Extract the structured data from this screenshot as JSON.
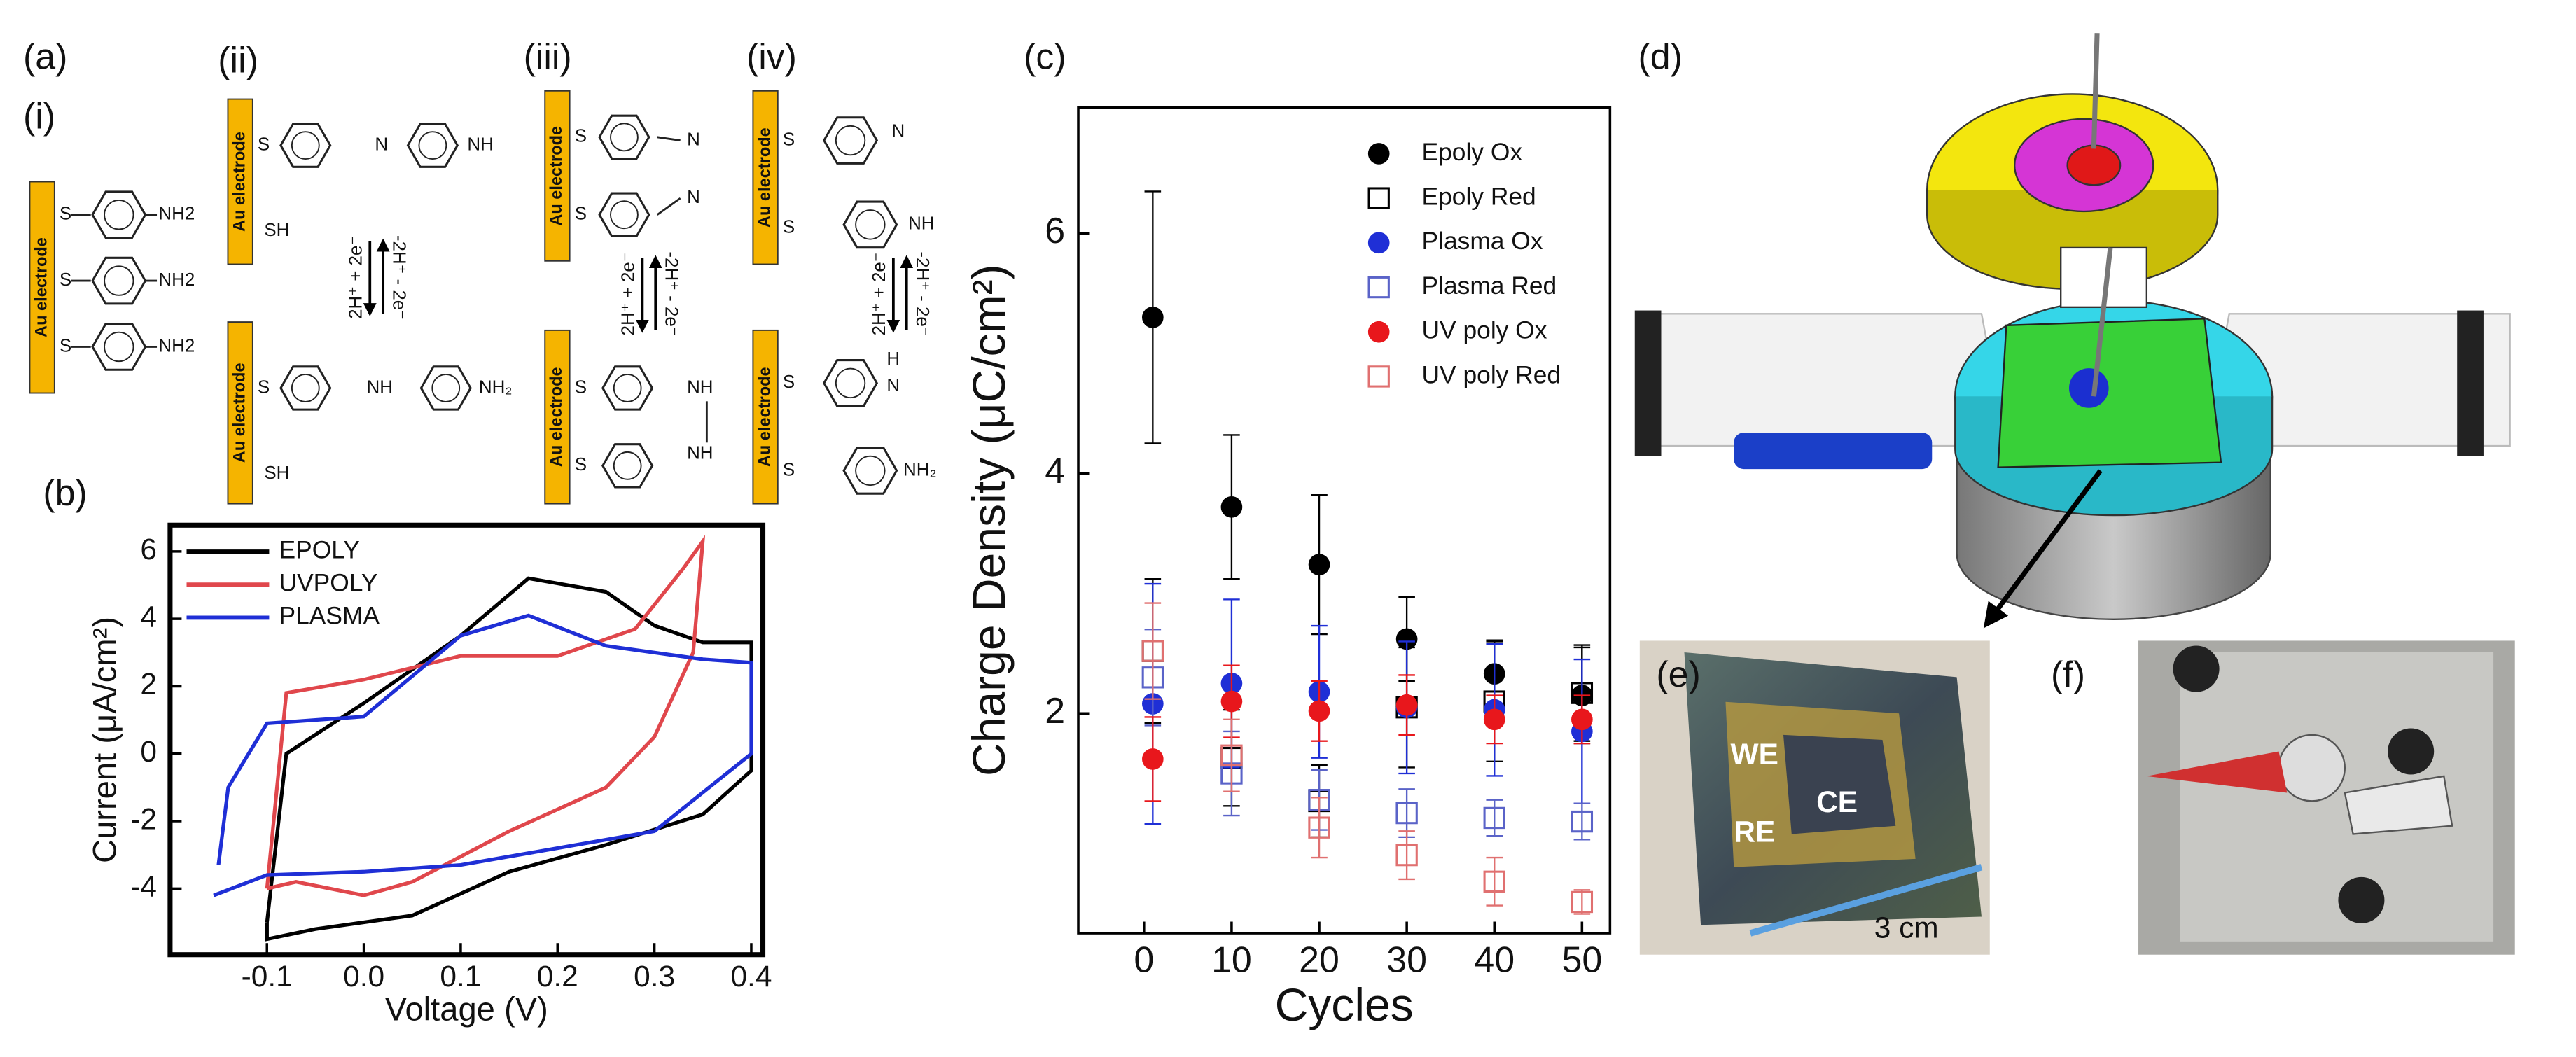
{
  "panel_labels": {
    "a": "(a)",
    "i": "(i)",
    "ii": "(ii)",
    "iii": "(iii)",
    "iv": "(iv)",
    "b": "(b)",
    "c": "(c)",
    "d": "(d)",
    "e": "(e)",
    "f": "(f)"
  },
  "scheme": {
    "electrode": "Au electrode",
    "s": "S",
    "nh2": "NH2",
    "nh2_sub": "NH₂",
    "nh": "NH",
    "sh": "SH",
    "n": "N",
    "h": "H",
    "fwd": "2H⁺ + 2e⁻",
    "rev": "-2H⁺ - 2e⁻"
  },
  "photo_labels": {
    "we": "WE",
    "ce": "CE",
    "re": "RE",
    "scale": "3 cm"
  },
  "chart_data": [
    {
      "type": "line",
      "x_label": "Voltage (V)",
      "y_label": "Current (μA/cm²)",
      "xlim": [
        -0.2,
        0.412
      ],
      "ylim": [
        -5.96,
        6.78
      ],
      "xticks": [
        -0.1,
        {
          "value": 0,
          "label": "0.0"
        },
        0.1,
        0.2,
        0.3,
        0.4
      ],
      "yticks": [
        -4,
        -2,
        0,
        2,
        4,
        6
      ],
      "legend": "upper left",
      "series": [
        {
          "name": "EPOLY",
          "color": "#000000",
          "x": [
            -0.1,
            -0.08,
            0.0,
            0.1,
            0.17,
            0.25,
            0.3,
            0.35,
            0.4,
            0.4,
            0.35,
            0.25,
            0.15,
            0.05,
            -0.05,
            -0.1,
            -0.1
          ],
          "values": [
            -5.0,
            0.0,
            1.5,
            3.5,
            5.2,
            4.8,
            3.8,
            3.3,
            3.3,
            -0.5,
            -1.8,
            -2.7,
            -3.5,
            -4.8,
            -5.2,
            -5.5,
            -5.0
          ]
        },
        {
          "name": "UVPOLY",
          "color": "#e0474c",
          "x": [
            -0.1,
            -0.08,
            0.0,
            0.1,
            0.2,
            0.28,
            0.33,
            0.35,
            0.34,
            0.3,
            0.25,
            0.15,
            0.05,
            0.0,
            -0.07,
            -0.1
          ],
          "values": [
            -4.0,
            1.8,
            2.2,
            2.9,
            2.9,
            3.7,
            5.5,
            6.3,
            3.0,
            0.5,
            -1.0,
            -2.3,
            -3.8,
            -4.2,
            -3.8,
            -4.0
          ]
        },
        {
          "name": "PLASMA",
          "color": "#1f2fd6",
          "x": [
            -0.15,
            -0.14,
            -0.1,
            0.0,
            0.1,
            0.17,
            0.25,
            0.35,
            0.4,
            0.4,
            0.3,
            0.2,
            0.1,
            0.0,
            -0.1,
            -0.155
          ],
          "values": [
            -3.3,
            -1.0,
            0.9,
            1.1,
            3.5,
            4.1,
            3.2,
            2.8,
            2.7,
            0.0,
            -2.3,
            -2.8,
            -3.3,
            -3.5,
            -3.6,
            -4.2
          ]
        }
      ]
    },
    {
      "type": "scatter",
      "x_label": "Cycles",
      "y_label": "Charge Density (μC/cm²)",
      "xlim": [
        -7.5,
        53.2
      ],
      "ylim": [
        0.17,
        7.05
      ],
      "xticks": [
        0,
        10,
        20,
        30,
        40,
        50
      ],
      "yticks": [
        2,
        4,
        6
      ],
      "legend": "upper right",
      "x": [
        1,
        10,
        20,
        30,
        40,
        50
      ],
      "series": [
        {
          "name": "Epoly Ox",
          "color": "#000000",
          "marker": "filled",
          "values": [
            5.3,
            3.72,
            3.24,
            2.62,
            2.33,
            2.15
          ],
          "errors": [
            1.05,
            0.6,
            0.58,
            0.35,
            0.28,
            0.4
          ]
        },
        {
          "name": "Epoly Red",
          "color": "#000000",
          "marker": "open",
          "values": [
            2.52,
            1.63,
            1.27,
            2.05,
            2.1,
            2.17
          ],
          "errors": [
            0.6,
            0.4,
            0.3,
            0.5,
            0.5,
            0.4
          ]
        },
        {
          "name": "Plasma Ox",
          "color": "#1f2fd6",
          "marker": "filled",
          "values": [
            2.08,
            2.25,
            2.18,
            2.05,
            2.03,
            1.85
          ],
          "errors": [
            1.0,
            0.7,
            0.55,
            0.55,
            0.55,
            0.6
          ]
        },
        {
          "name": "Plasma Red",
          "color": "#5a63c8",
          "marker": "open",
          "values": [
            2.3,
            1.5,
            1.28,
            1.17,
            1.13,
            1.1
          ],
          "errors": [
            0.4,
            0.35,
            0.25,
            0.2,
            0.15,
            0.15
          ]
        },
        {
          "name": "UV poly Ox",
          "color": "#e8171c",
          "marker": "filled",
          "values": [
            1.62,
            2.1,
            2.02,
            2.07,
            1.95,
            1.95
          ],
          "errors": [
            0.35,
            0.3,
            0.25,
            0.25,
            0.2,
            0.2
          ]
        },
        {
          "name": "UV poly Red",
          "color": "#e07070",
          "marker": "open",
          "values": [
            2.52,
            1.65,
            1.05,
            0.82,
            0.6,
            0.43
          ],
          "errors": [
            0.4,
            0.3,
            0.25,
            0.2,
            0.2,
            0.1
          ]
        }
      ]
    }
  ]
}
